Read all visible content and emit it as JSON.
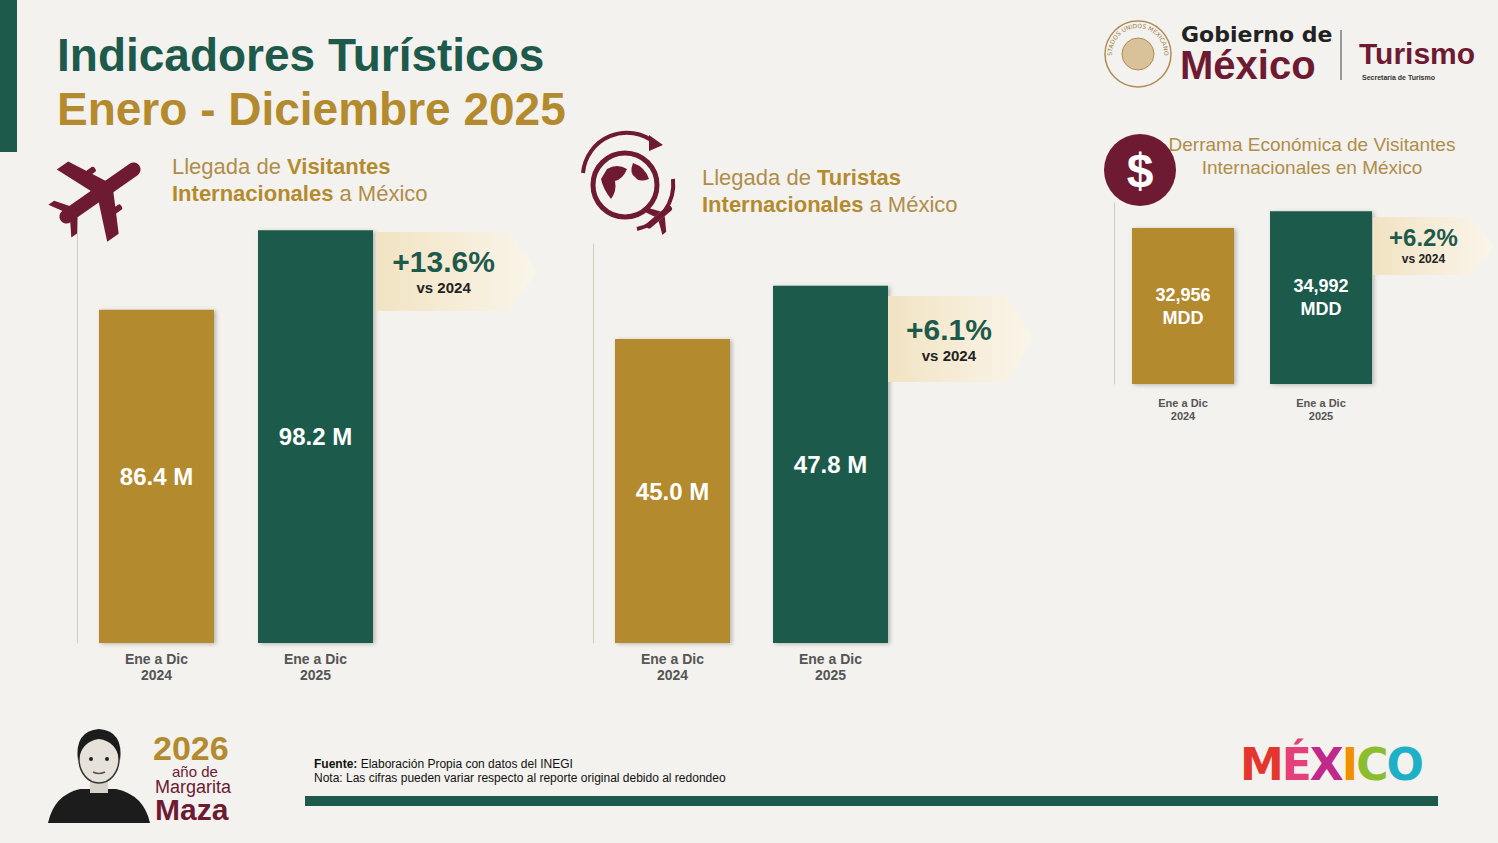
{
  "header": {
    "title": "Indicadores Turísticos",
    "subtitle": "Enero - Diciembre 2025"
  },
  "logo": {
    "seal": "ESTADOS UNIDOS MEXICANOS",
    "line1": "Gobierno de",
    "line2": "México",
    "agency": "Turismo",
    "agency_sub": "Secretaría de Turismo"
  },
  "chart_data": [
    {
      "type": "bar",
      "title": "Llegada de Visitantes Internacionales a México",
      "title_emphasis": "Visitantes Internacionales",
      "categories": [
        "Ene a Dic 2024",
        "Ene a Dic 2025"
      ],
      "values": [
        86.4,
        98.2
      ],
      "value_labels": [
        "86.4 M",
        "98.2 M"
      ],
      "colors": [
        "#b38a2e",
        "#1e5a4b"
      ],
      "ylim": [
        37,
        100
      ],
      "grid": false,
      "data_labels": true,
      "tick_labels": "x",
      "annotation": {
        "text": "+13.6%",
        "subtext": "vs 2024"
      }
    },
    {
      "type": "bar",
      "title": "Llegada de Turistas Internacionales a México",
      "title_emphasis": "Turistas Internacionales",
      "categories": [
        "Ene a Dic 2024",
        "Ene a Dic 2025"
      ],
      "values": [
        45.0,
        47.8
      ],
      "value_labels": [
        "45.0 M",
        "47.8 M"
      ],
      "colors": [
        "#b38a2e",
        "#1e5a4b"
      ],
      "ylim": [
        29,
        50
      ],
      "grid": false,
      "data_labels": true,
      "tick_labels": "x",
      "annotation": {
        "text": "+6.1%",
        "subtext": "vs 2024"
      }
    },
    {
      "type": "bar",
      "title": "Derrama Económica de Visitantes Internacionales en México",
      "icon_label": "$",
      "categories": [
        "Ene a Dic 2024",
        "Ene a Dic 2025"
      ],
      "values": [
        32956,
        34992
      ],
      "value_labels": [
        "32,956 MDD",
        "34,992 MDD"
      ],
      "colors": [
        "#b38a2e",
        "#1e5a4b"
      ],
      "ylim": [
        14000,
        36000
      ],
      "grid": false,
      "data_labels": true,
      "tick_labels": "x",
      "annotation": {
        "text": "+6.2%",
        "subtext": "vs 2024"
      }
    }
  ],
  "badge": {
    "year": "2026",
    "line1": "año de",
    "line2": "Margarita",
    "line3": "Maza"
  },
  "footer": {
    "source_label": "Fuente:",
    "source": "Elaboración Propia con datos del INEGI",
    "note": "Nota: Las cifras pueden variar respecto al reporte original debido al redondeo"
  },
  "brand": "MÉXICO"
}
